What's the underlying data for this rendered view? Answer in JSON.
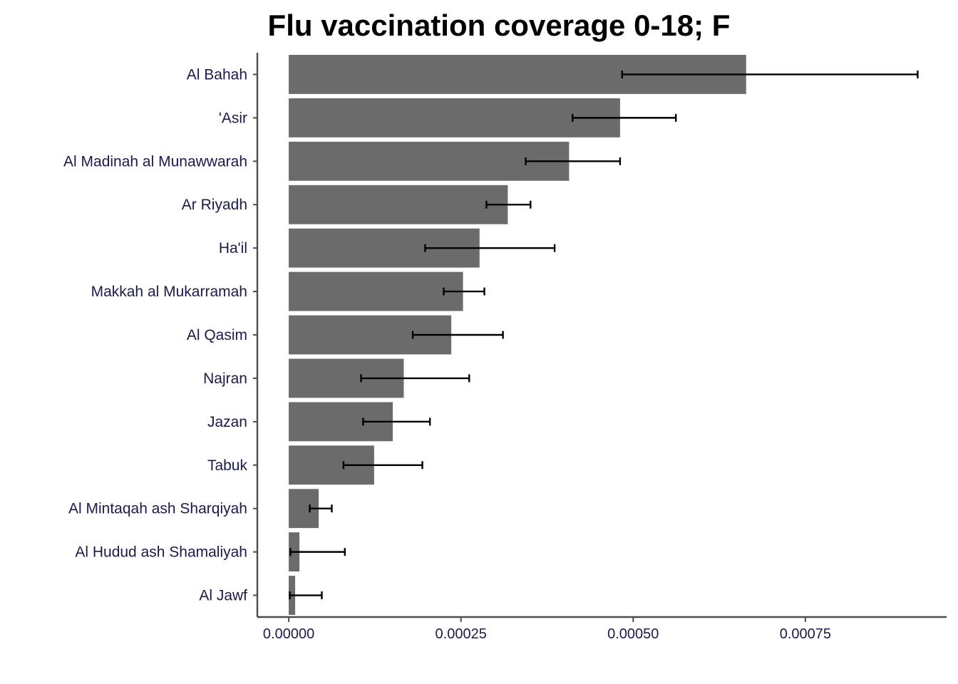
{
  "chart_data": {
    "type": "bar",
    "orientation": "horizontal",
    "title": "Flu vaccination coverage 0-18; F",
    "xlabel": "",
    "ylabel": "",
    "categories": [
      "Al Bahah",
      "'Asir",
      "Al Madinah al Munawwarah",
      "Ar Riyadh",
      "Ha'il",
      "Makkah al Mukarramah",
      "Al Qasim",
      "Najran",
      "Jazan",
      "Tabuk",
      "Al Mintaqah ash Sharqiyah",
      "Al Hudud ash Shamaliyah",
      "Al Jawf"
    ],
    "values": [
      0.000664,
      0.000481,
      0.000407,
      0.000318,
      0.000277,
      0.000253,
      0.000236,
      0.000167,
      0.000151,
      0.000124,
      4.35e-05,
      1.55e-05,
      9.3e-06
    ],
    "error_low": [
      0.000484,
      0.000412,
      0.000344,
      0.000287,
      0.000198,
      0.000225,
      0.00018,
      0.000105,
      0.000108,
      7.95e-05,
      3.05e-05,
      2.5e-06,
      1.5e-06
    ],
    "error_high": [
      0.000913,
      0.000562,
      0.000481,
      0.000351,
      0.000386,
      0.000284,
      0.000311,
      0.000262,
      0.000205,
      0.000194,
      6.25e-05,
      8.15e-05,
      4.8e-05
    ],
    "xlim": [
      -4.56e-05,
      0.000955
    ],
    "xticks": [
      0,
      0.00025,
      0.0005,
      0.00075
    ],
    "xtick_labels": [
      "0.00000",
      "0.00025",
      "0.00050",
      "0.00075"
    ],
    "grid": false,
    "legend": "none",
    "bar_color": "#6b6b6b",
    "errorbar_color": "#000000",
    "axis_color": "#4d4d4d",
    "label_color": "#1a1a4e"
  }
}
